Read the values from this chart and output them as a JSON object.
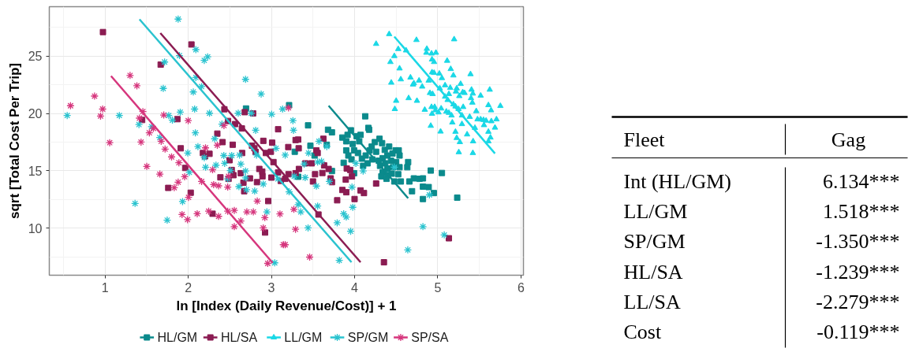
{
  "chart_data": [
    {
      "type": "scatter",
      "xlabel": "ln [Index (Daily Revenue/Cost)] + 1",
      "ylabel": "sqrt [Total Cost Per Trip]",
      "xlim": [
        0.33,
        6.03
      ],
      "ylim": [
        5.9,
        29.3
      ],
      "xticks": [
        1,
        2,
        3,
        4,
        5,
        6
      ],
      "yticks": [
        10,
        15,
        20,
        25
      ],
      "grid": true,
      "legend": "bottom",
      "series": [
        {
          "name": "HL/GM",
          "color": "#0b8a8c",
          "marker": "square",
          "x": [
            3.213,
            2.695,
            4.128,
            3.441,
            3.681,
            3.728,
            4.166,
            4.175,
            3.853,
            3.916,
            3.956,
            4.025,
            4.072,
            4.056,
            3.978,
            3.9,
            3.994,
            3.9,
            3.925,
            3.869,
            3.963,
            4.041,
            4.088,
            4.134,
            4.156,
            4.103,
            4.206,
            4.244,
            4.3,
            4.331,
            4.259,
            4.213,
            4.181,
            4.363,
            4.416,
            4.494,
            4.531,
            4.456,
            4.541,
            4.394,
            4.338,
            4.291,
            4.438,
            4.5,
            4.306,
            4.369,
            4.394,
            4.463,
            4.541,
            4.338,
            4.4,
            4.447,
            4.525,
            4.322,
            4.384,
            4.478,
            4.556,
            4.634,
            4.644,
            3.728,
            3.994,
            4.659,
            4.713,
            4.781,
            4.822,
            4.691,
            4.822,
            4.891,
            4.953,
            4.822,
            4.916,
            5.05,
            5.234,
            3.469,
            3.666,
            3.281,
            3.322,
            3.519
          ],
          "values": [
            20.72,
            20.43,
            19.75,
            18.96,
            18.58,
            18.35,
            18.74,
            18.58,
            17.9,
            18.13,
            18.53,
            18.02,
            18.13,
            17.57,
            17.34,
            17.57,
            16.78,
            16.78,
            16.33,
            15.7,
            15.99,
            16.55,
            16.06,
            16.33,
            15.65,
            15.43,
            17.11,
            17.5,
            17.79,
            17.41,
            16.66,
            15.99,
            16.78,
            16.82,
            17.11,
            16.78,
            16.78,
            16.51,
            16.33,
            16.33,
            16.1,
            15.88,
            15.88,
            15.76,
            15.43,
            15.65,
            15.2,
            15.31,
            15.31,
            14.86,
            14.63,
            14.75,
            14.7,
            14.52,
            14.3,
            14.07,
            14.07,
            15.31,
            15.76,
            14.98,
            14.79,
            14.07,
            14.34,
            14.3,
            14.34,
            13.22,
            13.62,
            13.58,
            13.06,
            12.54,
            15.02,
            14.81,
            12.66,
            17.18,
            17.27,
            16.66,
            14.48,
            16.33
          ]
        },
        {
          "name": "HL/SA",
          "color": "#8b1c52",
          "marker": "square",
          "x": [
            0.975,
            2.039,
            1.669,
            1.446,
            1.87,
            2.35,
            2.413,
            1.91,
            2.177,
            2.256,
            2.202,
            1.964,
            1.76,
            2.03,
            2.293,
            2.435,
            2.68,
            2.78,
            2.479,
            2.563,
            2.645,
            2.535,
            2.648,
            2.497,
            2.523,
            2.544,
            2.387,
            2.485,
            2.632,
            2.742,
            2.664,
            2.673,
            2.827,
            2.893,
            3.0,
            2.855,
            2.89,
            2.767,
            2.796,
            2.903,
            3.009,
            2.811,
            2.934,
            2.994,
            3.081,
            3.025,
            2.962,
            2.924,
            3.113,
            3.081,
            3.291,
            3.322,
            3.203,
            3.328,
            3.625,
            3.541,
            3.556,
            3.409,
            3.484,
            3.634,
            3.688,
            3.331,
            3.291,
            3.525,
            3.613,
            3.206,
            3.166,
            3.5,
            3.713,
            3.728,
            3.906,
            3.947,
            3.969,
            3.894,
            3.853,
            3.9,
            4.072,
            4.113,
            3.791,
            4.0,
            4.259,
            3.566,
            5.134,
            4.353
          ],
          "values": [
            27.09,
            26.01,
            24.25,
            19.43,
            19.5,
            18.24,
            17.5,
            16.96,
            16.55,
            16.48,
            16.26,
            15.25,
            13.51,
            13.09,
            11.26,
            20.36,
            20.11,
            20.0,
            19.34,
            19.07,
            18.69,
            17.27,
            16.55,
            15.92,
            15.07,
            14.62,
            14.43,
            14.3,
            14.79,
            14.34,
            13.96,
            13.22,
            14.01,
            14.52,
            14.41,
            15.16,
            14.93,
            17.18,
            16.96,
            17.61,
            17.45,
            16.64,
            16.55,
            16.66,
            18.62,
            15.76,
            12.36,
            9.62,
            14.12,
            14.86,
            17.68,
            17.72,
            17.07,
            16.96,
            17.79,
            16.78,
            16.55,
            15.65,
            15.65,
            15.47,
            15.16,
            15.16,
            14.79,
            14.7,
            14.81,
            14.7,
            14.3,
            14.07,
            14.34,
            14.01,
            15.2,
            15.07,
            14.52,
            14.23,
            13.33,
            13.13,
            13.29,
            13.06,
            12.43,
            12.54,
            13.89,
            11.19,
            9.12,
            7.03
          ]
        },
        {
          "name": "LL/GM",
          "color": "#1ad8e6",
          "marker": "triangle",
          "x": [
            4.416,
            4.259,
            4.744,
            5.197,
            4.525,
            4.619,
            4.869,
            4.863,
            4.925,
            4.978,
            4.478,
            4.431,
            4.931,
            4.956,
            5.113,
            4.541,
            5.156,
            4.931,
            4.956,
            5.019,
            5.05,
            5.188,
            5.394,
            4.441,
            4.556,
            4.672,
            4.713,
            4.703,
            4.775,
            4.813,
            4.891,
            4.906,
            4.938,
            5.025,
            5.088,
            5.15,
            5.228,
            5.275,
            5.219,
            5.3,
            5.259,
            5.322,
            5.088,
            5.119,
            5.134,
            5.406,
            5.422,
            5.516,
            5.625,
            4.65,
            4.75,
            4.5,
            4.484,
            4.844,
            4.925,
            4.963,
            4.972,
            4.931,
            5.009,
            5.041,
            5.103,
            5.134,
            5.188,
            5.213,
            5.25,
            5.306,
            5.4,
            5.416,
            5.463,
            5.609,
            5.641,
            5.753,
            5.166,
            5.291,
            5.384,
            5.478,
            5.516,
            5.55,
            5.581,
            5.644,
            5.706,
            5.175,
            5.291,
            5.556,
            5.688,
            5.447,
            4.916,
            5.034,
            5.213,
            5.353,
            5.609,
            5.228,
            5.266,
            5.634,
            5.609,
            5.425,
            5.253,
            5.422
          ],
          "values": [
            26.91,
            26.06,
            26.4,
            26.46,
            25.61,
            25.49,
            25.63,
            25.29,
            25.22,
            25.29,
            25.0,
            24.48,
            24.7,
            24.48,
            24.59,
            23.92,
            23.87,
            23.58,
            23.53,
            23.47,
            23.08,
            23.31,
            23.42,
            22.68,
            22.97,
            23.13,
            22.63,
            22.52,
            22.86,
            22.34,
            22.86,
            21.78,
            21.69,
            22.18,
            22.45,
            22.23,
            22.18,
            22.57,
            21.91,
            21.84,
            21.51,
            21.78,
            21.46,
            21.17,
            21.69,
            22.07,
            21.73,
            21.55,
            22.07,
            21.33,
            21.1,
            21.1,
            20.38,
            20.32,
            20.56,
            20.56,
            20.27,
            19.97,
            20.09,
            20.43,
            20.16,
            20.05,
            20.79,
            20.61,
            20.38,
            20.56,
            21.33,
            20.94,
            20.2,
            20.72,
            20.27,
            20.65,
            19.82,
            19.82,
            19.7,
            19.48,
            19.48,
            19.43,
            19.37,
            19.32,
            19.48,
            19.21,
            19.07,
            18.98,
            18.76,
            18.74,
            18.92,
            18.42,
            18.4,
            18.17,
            18.4,
            17.86,
            17.5,
            17.9,
            17.57,
            17.57,
            16.62,
            16.55
          ]
        },
        {
          "name": "SP/GM",
          "color": "#2ac3cf",
          "marker": "cross",
          "x": [
            0.545,
            1.879,
            2.092,
            2.234,
            2.193,
            1.716,
            1.895,
            2.092,
            1.7,
            2.061,
            2.161,
            2.689,
            2.877,
            1.172,
            1.766,
            1.81,
            1.904,
            2.077,
            2.256,
            1.408,
            1.559,
            1.659,
            2.086,
            2.318,
            2.406,
            2.601,
            2.758,
            3.003,
            2.811,
            2.117,
            1.995,
            2.193,
            2.209,
            2.334,
            2.428,
            2.523,
            2.617,
            2.438,
            2.633,
            2.507,
            2.689,
            2.475,
            2.689,
            2.61,
            2.701,
            2.799,
            2.902,
            2.821,
            3.056,
            3.166,
            3.078,
            2.014,
            1.361,
            1.932,
            1.747,
            2.946,
            3.04,
            3.135,
            3.259,
            3.266,
            3.572,
            3.666,
            3.447,
            3.556,
            3.603,
            3.394,
            3.275,
            3.406,
            3.697,
            3.541,
            3.969,
            3.213,
            3.322,
            3.353,
            3.556,
            3.978,
            3.869,
            3.9,
            3.791,
            3.441,
            3.953,
            3.816,
            4.016,
            4.103,
            4.478,
            4.9,
            4.822,
            4.64,
            5.078
          ],
          "values": [
            19.82,
            28.22,
            25.56,
            24.93,
            24.62,
            24.48,
            25.04,
            23.13,
            22.18,
            21.87,
            22.34,
            22.97,
            21.69,
            19.82,
            19.82,
            19.41,
            20.11,
            20.38,
            20.02,
            19.03,
            18.85,
            17.9,
            18.31,
            17.79,
            19.07,
            20.02,
            20.02,
            19.93,
            18.53,
            17.11,
            16.55,
            16.15,
            15.31,
            15.49,
            16.33,
            16.33,
            16.37,
            15.65,
            15.58,
            15.02,
            14.98,
            14.3,
            14.39,
            13.62,
            13.36,
            13.24,
            13.85,
            16.37,
            16.96,
            16.37,
            14.3,
            14.86,
            12.16,
            12.32,
            10.7,
            11.42,
            6.98,
            20.38,
            19.37,
            18.53,
            17.57,
            17.11,
            16.55,
            15.76,
            15.83,
            15.58,
            14.52,
            14.41,
            14.07,
            13.67,
            13.58,
            13.17,
            12.05,
            11.42,
            11.93,
            11.82,
            11.26,
            10.97,
            10.47,
            10.02,
            9.73,
            7.2,
            15.65,
            14.98,
            15.31,
            12.9,
            10.13,
            8.11,
            9.41
          ]
        },
        {
          "name": "SP/SA",
          "color": "#d6367d",
          "marker": "cross",
          "x": [
            0.585,
            0.874,
            0.971,
            0.946,
            1.056,
            1.301,
            1.383,
            1.455,
            1.414,
            1.533,
            1.433,
            1.581,
            1.675,
            1.722,
            1.8,
            1.888,
            1.502,
            1.659,
            1.706,
            2.0,
            1.832,
            1.879,
            1.957,
            2.004,
            1.926,
            1.992,
            2.108,
            2.208,
            2.161,
            2.293,
            2.306,
            2.365,
            2.475,
            2.246,
            2.365,
            2.475,
            2.554,
            2.554,
            2.632,
            2.705,
            2.783,
            2.83,
            2.921,
            2.902,
            2.956,
            3.103,
            3.144,
            2.35,
            2.43,
            2.485,
            3.206,
            3.27,
            3.29,
            3.166,
            3.46
          ],
          "values": [
            20.67,
            21.51,
            20.38,
            19.77,
            17.45,
            23.31,
            22.41,
            20.16,
            19.59,
            18.31,
            17.5,
            18.69,
            17.57,
            16.89,
            16.21,
            15.7,
            15.38,
            14.71,
            19.86,
            19.37,
            13.53,
            14.01,
            14.48,
            12.68,
            11.19,
            10.74,
            11.26,
            17.0,
            14.07,
            15.09,
            13.8,
            13.69,
            13.58,
            11.48,
            11.03,
            11.48,
            11.55,
            10.13,
            10.63,
            11.42,
            11.42,
            12.36,
            10.92,
            10.02,
            6.93,
            11.24,
            8.56,
            17.23,
            18.94,
            14.52,
            20.49,
            11.64,
            9.9,
            8.56,
            7.48
          ]
        },
        {
          "type": "line",
          "color": "#0b8a8c",
          "line_style": "solid",
          "x": [
            3.688,
            4.644
          ],
          "values": [
            20.67,
            12.61
          ]
        },
        {
          "type": "line",
          "color": "#8b1c52",
          "line_style": "solid",
          "x": [
            1.665,
            4.072
          ],
          "values": [
            27.0,
            7.03
          ]
        },
        {
          "type": "line",
          "color": "#1ad8e6",
          "line_style": "solid",
          "x": [
            4.478,
            5.688
          ],
          "values": [
            26.69,
            16.51
          ]
        },
        {
          "type": "line",
          "color": "#2ac3cf",
          "line_style": "solid",
          "x": [
            1.414,
            3.963
          ],
          "values": [
            28.2,
            7.03
          ]
        },
        {
          "type": "line",
          "color": "#d6367d",
          "line_style": "solid",
          "x": [
            1.072,
            3.015
          ],
          "values": [
            23.26,
            6.98
          ]
        }
      ]
    },
    {
      "type": "other",
      "annotations": [
        "Fleet",
        "Gag",
        "6.134***",
        "1.518***",
        "-1.350***",
        "-1.239***",
        "-2.279***",
        "-0.119***"
      ],
      "categories": [
        "Int (HL/GM)",
        "LL/GM",
        "SP/GM",
        "HL/SA",
        "LL/SA",
        "Cost"
      ]
    }
  ]
}
